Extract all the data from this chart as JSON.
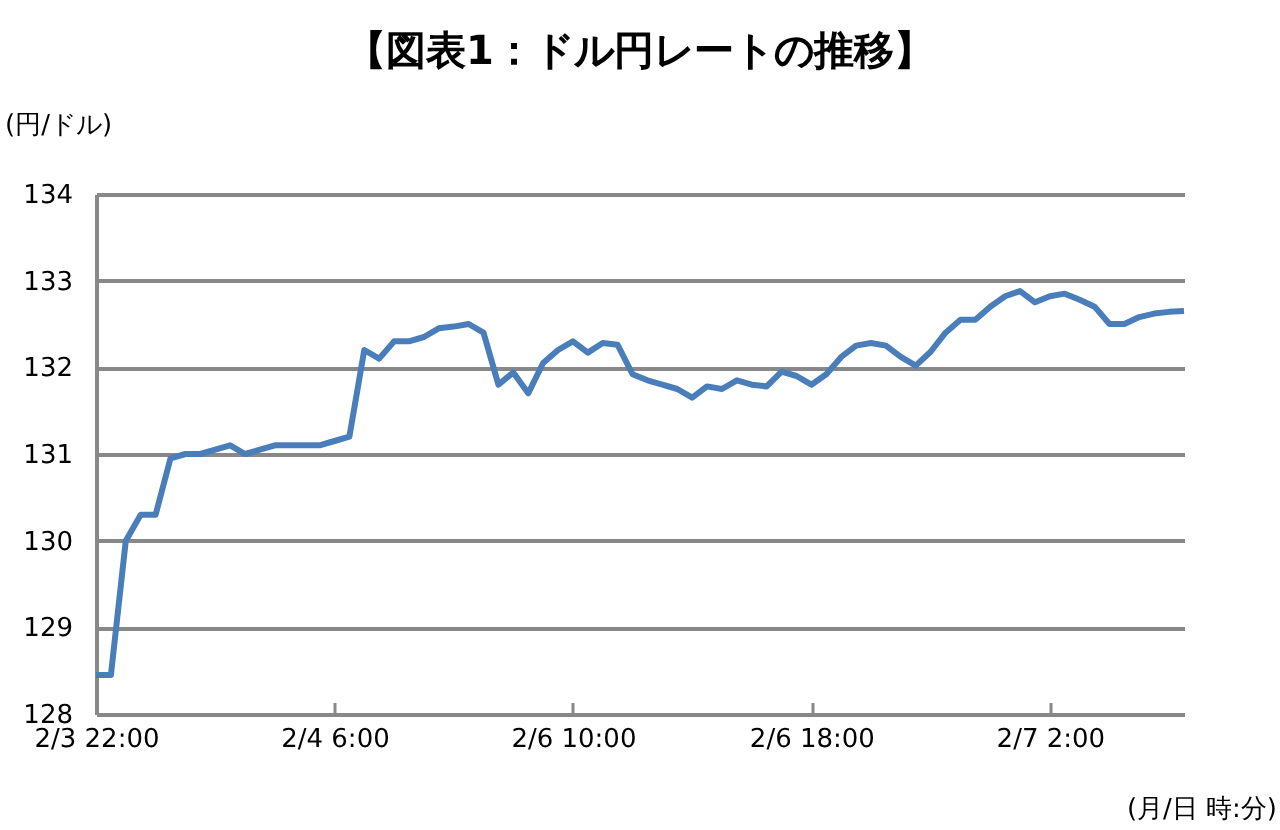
{
  "chart_data": {
    "type": "line",
    "title": "【図表1：ドル円レートの推移】",
    "xlabel": "(月/日 時:分)",
    "ylabel": "(円/ドル)",
    "categories": [
      "2/3 22:00",
      null,
      null,
      null,
      null,
      null,
      null,
      null,
      null,
      null,
      null,
      null,
      null,
      null,
      null,
      null,
      "2/4 6:00",
      null,
      null,
      null,
      null,
      null,
      null,
      null,
      null,
      null,
      null,
      null,
      null,
      null,
      null,
      null,
      "2/6 10:00",
      null,
      null,
      null,
      null,
      null,
      null,
      null,
      null,
      null,
      null,
      null,
      null,
      null,
      null,
      null,
      "2/6 18:00",
      null,
      null,
      null,
      null,
      null,
      null,
      null,
      null,
      null,
      null,
      null,
      null,
      null,
      null,
      null,
      "2/7 2:00",
      null,
      null,
      null,
      null,
      null,
      null,
      null,
      null,
      null
    ],
    "series": [
      {
        "color": "#4a7ebb",
        "values": [
          128.45,
          128.45,
          130.0,
          130.3,
          130.3,
          130.95,
          131.0,
          131.0,
          131.05,
          131.1,
          131.0,
          131.05,
          131.1,
          131.1,
          131.1,
          131.1,
          131.15,
          131.2,
          132.2,
          132.1,
          132.3,
          132.3,
          132.35,
          132.45,
          132.47,
          132.5,
          132.4,
          131.8,
          131.94,
          131.7,
          132.05,
          132.2,
          132.3,
          132.17,
          132.28,
          132.26,
          131.92,
          131.85,
          131.8,
          131.75,
          131.65,
          131.78,
          131.75,
          131.85,
          131.8,
          131.78,
          131.95,
          131.9,
          131.8,
          131.92,
          132.12,
          132.25,
          132.28,
          132.25,
          132.12,
          132.02,
          132.18,
          132.4,
          132.55,
          132.55,
          132.7,
          132.82,
          132.88,
          132.75,
          132.82,
          132.85,
          132.78,
          132.7,
          132.5,
          132.5,
          132.58,
          132.62,
          132.64,
          132.65
        ]
      }
    ],
    "ylim": [
      128,
      134
    ],
    "yticks": [
      128,
      129,
      130,
      131,
      132,
      133,
      134
    ],
    "grid": "y",
    "line_style": "solid",
    "marker": "none"
  }
}
